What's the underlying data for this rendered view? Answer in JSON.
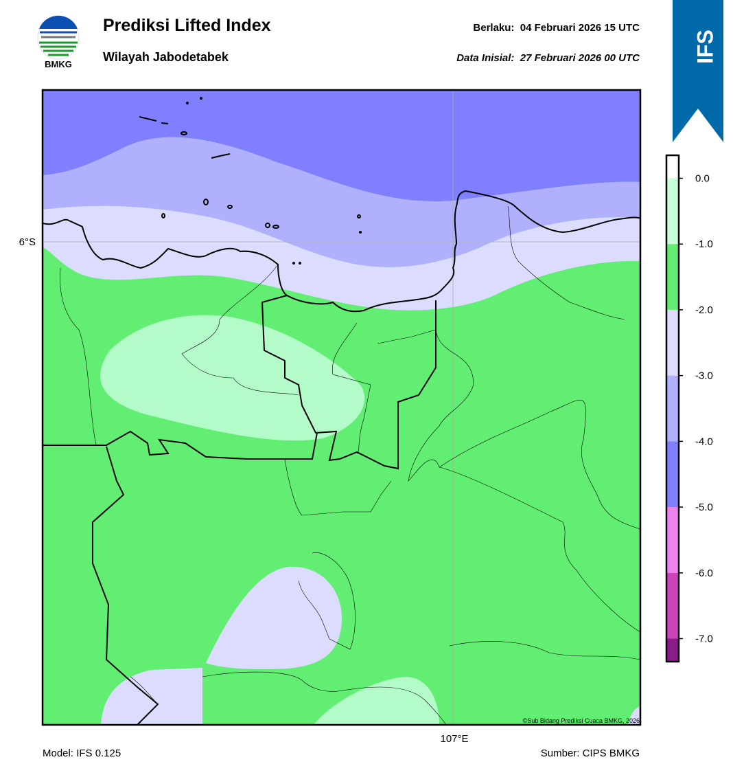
{
  "header": {
    "title": "Prediksi Lifted Index",
    "subtitle": "Wilayah Jabodetabek",
    "valid": "Berlaku:  04 Februari 2026 15 UTC",
    "init": "Data Inisial:  27 Februari 2026 00 UTC",
    "logo_text": "BMKG",
    "badge": "IFS"
  },
  "map": {
    "lat_label": "6°S",
    "lon_label": "107°E",
    "copyright": "©Sub Bidang Prediksi Cuaca BMKG, 2026"
  },
  "footer": {
    "model": "Model: IFS 0.125",
    "source": "Sumber: CIPS BMKG"
  },
  "colorbar": {
    "lim": [
      0.35,
      -7.35
    ],
    "ticks": [
      {
        "value": 0,
        "label": "0.0"
      },
      {
        "value": -1,
        "label": "-1.0"
      },
      {
        "value": -2,
        "label": "-2.0"
      },
      {
        "value": -3,
        "label": "-3.0"
      },
      {
        "value": -4,
        "label": "-4.0"
      },
      {
        "value": -5,
        "label": "-5.0"
      },
      {
        "value": -6,
        "label": "-6.0"
      },
      {
        "value": -7,
        "label": "-7.0"
      }
    ],
    "colors": [
      "#ffffff",
      "#c8ffd8",
      "#62ee72",
      "#dcdcff",
      "#b0b0ff",
      "#7f7fff",
      "#ee82ee",
      "#cc44bb",
      "#8b1a8b"
    ]
  }
}
